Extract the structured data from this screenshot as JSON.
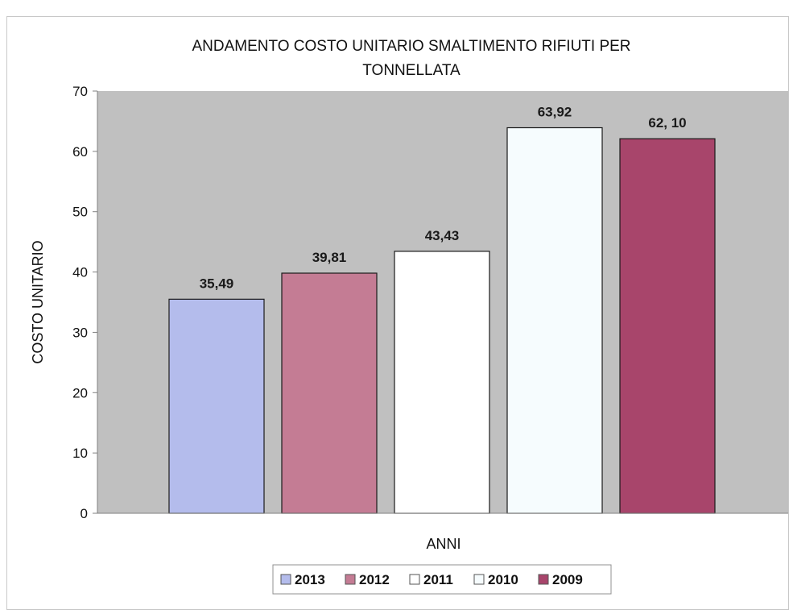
{
  "chart_data": {
    "type": "bar",
    "title_line1": "ANDAMENTO COSTO UNITARIO SMALTIMENTO RIFIUTI PER",
    "title_line2": "TONNELLATA",
    "xlabel": "ANNI",
    "ylabel": "COSTO UNITARIO",
    "ylim": [
      0,
      70
    ],
    "yticks": [
      "0",
      "10",
      "20",
      "30",
      "40",
      "50",
      "60",
      "70"
    ],
    "ytick_values": [
      0,
      10,
      20,
      30,
      40,
      50,
      60,
      70
    ],
    "grid": false,
    "legend_position": "bottom",
    "plot_background": "#c0c0c0",
    "series": [
      {
        "name": "2013",
        "value": 35.49,
        "label": "35,49",
        "color": "#b4bcec"
      },
      {
        "name": "2012",
        "value": 39.81,
        "label": "39,81",
        "color": "#c47c94"
      },
      {
        "name": "2011",
        "value": 43.43,
        "label": "43,43",
        "color": "#ffffff"
      },
      {
        "name": "2010",
        "value": 63.92,
        "label": "63,92",
        "color": "#f6fcfe"
      },
      {
        "name": "2009",
        "value": 62.1,
        "label": "62, 10",
        "color": "#a8456b"
      }
    ]
  }
}
